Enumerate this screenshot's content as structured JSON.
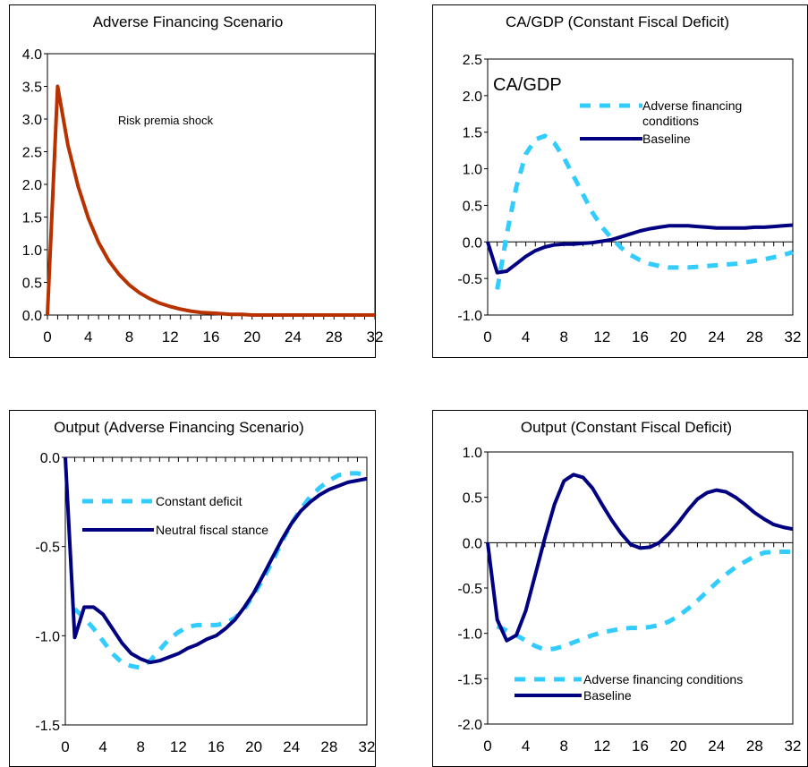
{
  "chart_data": [
    {
      "type": "line",
      "title": "Adverse Financing Scenario",
      "ylim": [
        0,
        4
      ],
      "yticks": [
        "0.0",
        "0.5",
        "1.0",
        "1.5",
        "2.0",
        "2.5",
        "3.0",
        "3.5",
        "4.0"
      ],
      "xticks": [
        "0",
        "4",
        "8",
        "12",
        "16",
        "20",
        "24",
        "28",
        "32"
      ],
      "annotations": [
        "Risk premia shock"
      ],
      "series": [
        {
          "name": "",
          "color": "#b83200",
          "style": "solid",
          "x": [
            0,
            1,
            2,
            3,
            4,
            5,
            6,
            7,
            8,
            9,
            10,
            11,
            12,
            13,
            14,
            15,
            16,
            17,
            18,
            19,
            20,
            21,
            22,
            23,
            24,
            25,
            26,
            27,
            28,
            29,
            30,
            31,
            32
          ],
          "y": [
            0.0,
            3.5,
            2.6,
            1.97,
            1.48,
            1.11,
            0.83,
            0.62,
            0.46,
            0.34,
            0.25,
            0.18,
            0.13,
            0.09,
            0.06,
            0.04,
            0.03,
            0.02,
            0.01,
            0.01,
            0.0,
            0.0,
            0.0,
            0.0,
            0.0,
            0.0,
            0.0,
            0.0,
            0.0,
            0.0,
            0.0,
            0.0,
            0.0
          ]
        }
      ]
    },
    {
      "type": "line",
      "title": "CA/GDP (Constant Fiscal Deficit)",
      "ylim": [
        -1,
        2.5
      ],
      "yticks": [
        "-1.0",
        "-0.5",
        "0.0",
        "0.5",
        "1.0",
        "1.5",
        "2.0",
        "2.5"
      ],
      "xticks": [
        "0",
        "4",
        "8",
        "12",
        "16",
        "20",
        "24",
        "28",
        "32"
      ],
      "annotations": [
        "CA/GDP"
      ],
      "series": [
        {
          "name": "Adverse financing conditions",
          "color": "#33ccff",
          "style": "dashed",
          "x": [
            1,
            2,
            3,
            4,
            5,
            6,
            7,
            8,
            9,
            10,
            11,
            12,
            13,
            14,
            15,
            16,
            17,
            18,
            19,
            20,
            21,
            22,
            23,
            24,
            25,
            26,
            27,
            28,
            29,
            30,
            31,
            32
          ],
          "y": [
            -0.65,
            0.1,
            0.75,
            1.2,
            1.4,
            1.45,
            1.35,
            1.15,
            0.9,
            0.65,
            0.4,
            0.2,
            0.05,
            -0.08,
            -0.18,
            -0.25,
            -0.3,
            -0.33,
            -0.35,
            -0.35,
            -0.35,
            -0.34,
            -0.33,
            -0.32,
            -0.31,
            -0.3,
            -0.28,
            -0.26,
            -0.24,
            -0.21,
            -0.18,
            -0.14
          ]
        },
        {
          "name": "Baseline",
          "color": "#000080",
          "style": "solid",
          "x": [
            0,
            1,
            2,
            3,
            4,
            5,
            6,
            7,
            8,
            9,
            10,
            11,
            12,
            13,
            14,
            15,
            16,
            17,
            18,
            19,
            20,
            21,
            22,
            23,
            24,
            25,
            26,
            27,
            28,
            29,
            30,
            31,
            32
          ],
          "y": [
            0.0,
            -0.42,
            -0.4,
            -0.3,
            -0.2,
            -0.12,
            -0.07,
            -0.04,
            -0.03,
            -0.03,
            -0.02,
            -0.01,
            0.01,
            0.03,
            0.07,
            0.11,
            0.15,
            0.18,
            0.2,
            0.22,
            0.22,
            0.22,
            0.21,
            0.2,
            0.19,
            0.19,
            0.19,
            0.19,
            0.2,
            0.2,
            0.21,
            0.22,
            0.23
          ]
        }
      ]
    },
    {
      "type": "line",
      "title": "Output (Adverse Financing Scenario)",
      "ylim": [
        -1.5,
        0
      ],
      "yticks": [
        "-1.5",
        "-1.0",
        "-0.5",
        "0.0"
      ],
      "xticks": [
        "0",
        "4",
        "8",
        "12",
        "16",
        "20",
        "24",
        "28",
        "32"
      ],
      "series": [
        {
          "name": "Constant deficit",
          "color": "#33ccff",
          "style": "dashed",
          "x": [
            1,
            2,
            3,
            4,
            5,
            6,
            7,
            8,
            9,
            10,
            11,
            12,
            13,
            14,
            15,
            16,
            17,
            18,
            19,
            20,
            21,
            22,
            23,
            24,
            25,
            26,
            27,
            28,
            29,
            30,
            31,
            32
          ],
          "y": [
            -0.85,
            -0.9,
            -0.96,
            -1.03,
            -1.1,
            -1.15,
            -1.17,
            -1.18,
            -1.14,
            -1.08,
            -1.02,
            -0.98,
            -0.95,
            -0.94,
            -0.94,
            -0.94,
            -0.93,
            -0.9,
            -0.85,
            -0.77,
            -0.68,
            -0.58,
            -0.47,
            -0.37,
            -0.29,
            -0.22,
            -0.17,
            -0.13,
            -0.1,
            -0.09,
            -0.09,
            -0.1
          ]
        },
        {
          "name": "Neutral fiscal stance",
          "color": "#000080",
          "style": "solid",
          "x": [
            0,
            1,
            2,
            3,
            4,
            5,
            6,
            7,
            8,
            9,
            10,
            11,
            12,
            13,
            14,
            15,
            16,
            17,
            18,
            19,
            20,
            21,
            22,
            23,
            24,
            25,
            26,
            27,
            28,
            29,
            30,
            31,
            32
          ],
          "y": [
            0.0,
            -1.01,
            -0.84,
            -0.84,
            -0.88,
            -0.96,
            -1.04,
            -1.1,
            -1.13,
            -1.15,
            -1.14,
            -1.12,
            -1.1,
            -1.07,
            -1.05,
            -1.02,
            -1.0,
            -0.96,
            -0.91,
            -0.84,
            -0.76,
            -0.66,
            -0.56,
            -0.46,
            -0.37,
            -0.3,
            -0.25,
            -0.21,
            -0.18,
            -0.16,
            -0.14,
            -0.13,
            -0.12
          ]
        }
      ]
    },
    {
      "type": "line",
      "title": "Output (Constant Fiscal Deficit)",
      "ylim": [
        -2,
        1
      ],
      "yticks": [
        "-2.0",
        "-1.5",
        "-1.0",
        "-0.5",
        "0.0",
        "0.5",
        "1.0"
      ],
      "xticks": [
        "0",
        "4",
        "8",
        "12",
        "16",
        "20",
        "24",
        "28",
        "32"
      ],
      "series": [
        {
          "name": "Adverse financing conditions",
          "color": "#33ccff",
          "style": "dashed",
          "x": [
            1,
            2,
            3,
            4,
            5,
            6,
            7,
            8,
            9,
            10,
            11,
            12,
            13,
            14,
            15,
            16,
            17,
            18,
            19,
            20,
            21,
            22,
            23,
            24,
            25,
            26,
            27,
            28,
            29,
            30,
            31,
            32
          ],
          "y": [
            -0.92,
            -0.97,
            -1.02,
            -1.08,
            -1.14,
            -1.18,
            -1.17,
            -1.14,
            -1.1,
            -1.06,
            -1.02,
            -0.99,
            -0.97,
            -0.95,
            -0.94,
            -0.94,
            -0.93,
            -0.91,
            -0.87,
            -0.81,
            -0.73,
            -0.64,
            -0.54,
            -0.44,
            -0.35,
            -0.27,
            -0.21,
            -0.15,
            -0.11,
            -0.1,
            -0.1,
            -0.1
          ]
        },
        {
          "name": "Baseline",
          "color": "#000080",
          "style": "solid",
          "x": [
            0,
            1,
            2,
            3,
            4,
            5,
            6,
            7,
            8,
            9,
            10,
            11,
            12,
            13,
            14,
            15,
            16,
            17,
            18,
            19,
            20,
            21,
            22,
            23,
            24,
            25,
            26,
            27,
            28,
            29,
            30,
            31,
            32
          ],
          "y": [
            0.0,
            -0.85,
            -1.08,
            -1.02,
            -0.75,
            -0.35,
            0.05,
            0.42,
            0.68,
            0.75,
            0.72,
            0.6,
            0.42,
            0.25,
            0.1,
            -0.02,
            -0.06,
            -0.05,
            0.0,
            0.1,
            0.22,
            0.36,
            0.48,
            0.55,
            0.58,
            0.56,
            0.5,
            0.42,
            0.33,
            0.26,
            0.2,
            0.17,
            0.15
          ]
        }
      ]
    }
  ]
}
